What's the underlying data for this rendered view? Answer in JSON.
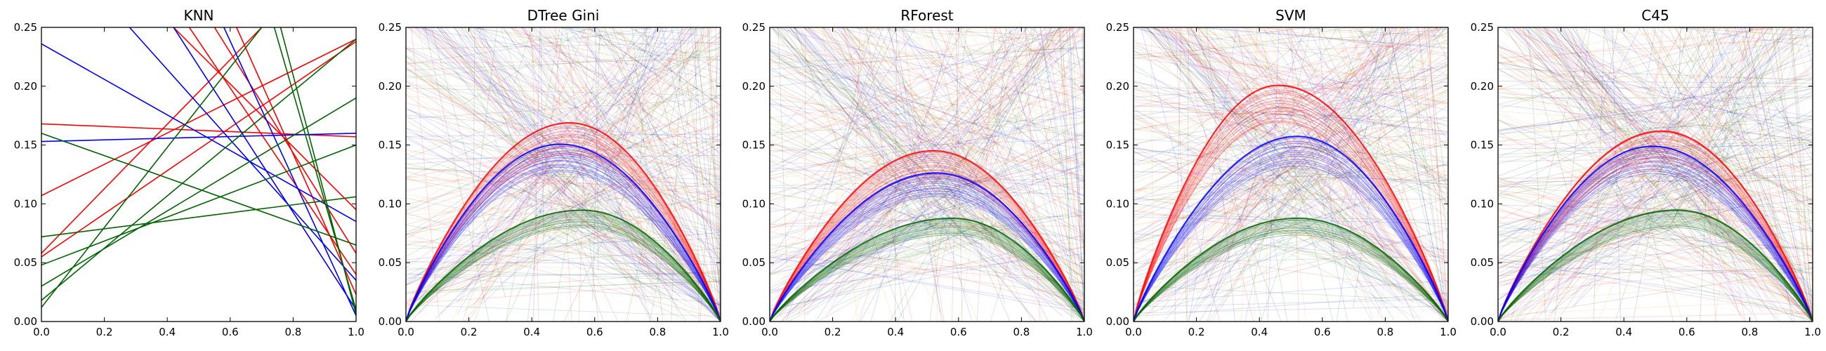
{
  "chart_data": [
    {
      "type": "line",
      "title": "KNN",
      "xlim": [
        0,
        1
      ],
      "ylim": [
        0,
        0.25
      ],
      "xticks": [
        "0.0",
        "0.2",
        "0.4",
        "0.6",
        "0.8",
        "1.0"
      ],
      "yticks": [
        "0.00",
        "0.05",
        "0.10",
        "0.15",
        "0.20",
        "0.25"
      ],
      "grid": false,
      "colors": {
        "red": "#ff0000",
        "blue": "#0000ff",
        "green": "#006400"
      },
      "segments": {
        "red": [
          [
            0.0,
            0.168,
            1.0,
            0.157
          ],
          [
            0.0,
            0.107,
            1.0,
            0.24
          ],
          [
            0.0,
            0.058,
            0.7,
            0.25
          ],
          [
            0.0,
            0.055,
            1.0,
            0.238
          ],
          [
            0.42,
            0.25,
            1.0,
            0.095
          ],
          [
            0.47,
            0.25,
            1.0,
            0.04
          ],
          [
            0.62,
            0.25,
            1.0,
            0.023
          ],
          [
            0.55,
            0.25,
            1.0,
            0.058
          ]
        ],
        "blue": [
          [
            0.0,
            0.236,
            1.0,
            0.085
          ],
          [
            0.0,
            0.153,
            1.0,
            0.16
          ],
          [
            0.28,
            0.25,
            1.0,
            0.035
          ],
          [
            0.42,
            0.25,
            1.0,
            0.01
          ],
          [
            0.58,
            0.25,
            1.0,
            0.005
          ]
        ],
        "green": [
          [
            0.0,
            0.16,
            1.0,
            0.065
          ],
          [
            0.0,
            0.072,
            1.0,
            0.106
          ],
          [
            0.0,
            0.048,
            1.0,
            0.15
          ],
          [
            0.0,
            0.03,
            1.0,
            0.19
          ],
          [
            0.0,
            0.018,
            1.0,
            0.24
          ],
          [
            0.0,
            0.012,
            0.7,
            0.25
          ],
          [
            0.74,
            0.25,
            1.0,
            0.01
          ],
          [
            0.76,
            0.25,
            1.0,
            0.006
          ]
        ]
      }
    },
    {
      "type": "line",
      "title": "DTree Gini",
      "xlim": [
        0,
        1
      ],
      "ylim": [
        0,
        0.25
      ],
      "xticks": [
        "0.0",
        "0.2",
        "0.4",
        "0.6",
        "0.8",
        "1.0"
      ],
      "yticks": [
        "0.00",
        "0.05",
        "0.10",
        "0.15",
        "0.20",
        "0.25"
      ],
      "grid": false,
      "colors": {
        "red": "#ff0000",
        "blue": "#0000ff",
        "green": "#006400",
        "orange": "#ff8c00",
        "gray": "#000000"
      },
      "curves": [
        {
          "color": "red",
          "peak_x": 0.52,
          "peak_y": 0.169
        },
        {
          "color": "blue",
          "peak_x": 0.49,
          "peak_y": 0.151
        },
        {
          "color": "green",
          "peak_x": 0.56,
          "peak_y": 0.095
        }
      ]
    },
    {
      "type": "line",
      "title": "RForest",
      "xlim": [
        0,
        1
      ],
      "ylim": [
        0,
        0.25
      ],
      "xticks": [
        "0.0",
        "0.2",
        "0.4",
        "0.6",
        "0.8",
        "1.0"
      ],
      "yticks": [
        "0.00",
        "0.05",
        "0.10",
        "0.15",
        "0.20",
        "0.25"
      ],
      "grid": false,
      "colors": {
        "red": "#ff0000",
        "blue": "#0000ff",
        "green": "#006400",
        "orange": "#ff8c00",
        "gray": "#000000"
      },
      "curves": [
        {
          "color": "red",
          "peak_x": 0.52,
          "peak_y": 0.146
        },
        {
          "color": "blue",
          "peak_x": 0.53,
          "peak_y": 0.127
        },
        {
          "color": "green",
          "peak_x": 0.58,
          "peak_y": 0.088
        }
      ]
    },
    {
      "type": "line",
      "title": "SVM",
      "xlim": [
        0,
        1
      ],
      "ylim": [
        0,
        0.25
      ],
      "xticks": [
        "0.0",
        "0.2",
        "0.4",
        "0.6",
        "0.8",
        "1.0"
      ],
      "yticks": [
        "0.00",
        "0.05",
        "0.10",
        "0.15",
        "0.20",
        "0.25"
      ],
      "grid": false,
      "colors": {
        "red": "#ff0000",
        "blue": "#0000ff",
        "green": "#006400",
        "orange": "#ff8c00",
        "gray": "#000000"
      },
      "curves": [
        {
          "color": "red",
          "peak_x": 0.46,
          "peak_y": 0.201
        },
        {
          "color": "blue",
          "peak_x": 0.52,
          "peak_y": 0.158
        },
        {
          "color": "green",
          "peak_x": 0.52,
          "peak_y": 0.088
        }
      ]
    },
    {
      "type": "line",
      "title": "C45",
      "xlim": [
        0,
        1
      ],
      "ylim": [
        0,
        0.25
      ],
      "xticks": [
        "0.0",
        "0.2",
        "0.4",
        "0.6",
        "0.8",
        "1.0"
      ],
      "yticks": [
        "0.00",
        "0.05",
        "0.10",
        "0.15",
        "0.20",
        "0.25"
      ],
      "grid": false,
      "colors": {
        "red": "#ff0000",
        "blue": "#0000ff",
        "green": "#006400",
        "orange": "#ff8c00",
        "gray": "#000000"
      },
      "curves": [
        {
          "color": "red",
          "peak_x": 0.52,
          "peak_y": 0.163
        },
        {
          "color": "blue",
          "peak_x": 0.49,
          "peak_y": 0.15
        },
        {
          "color": "green",
          "peak_x": 0.57,
          "peak_y": 0.095
        }
      ]
    }
  ]
}
